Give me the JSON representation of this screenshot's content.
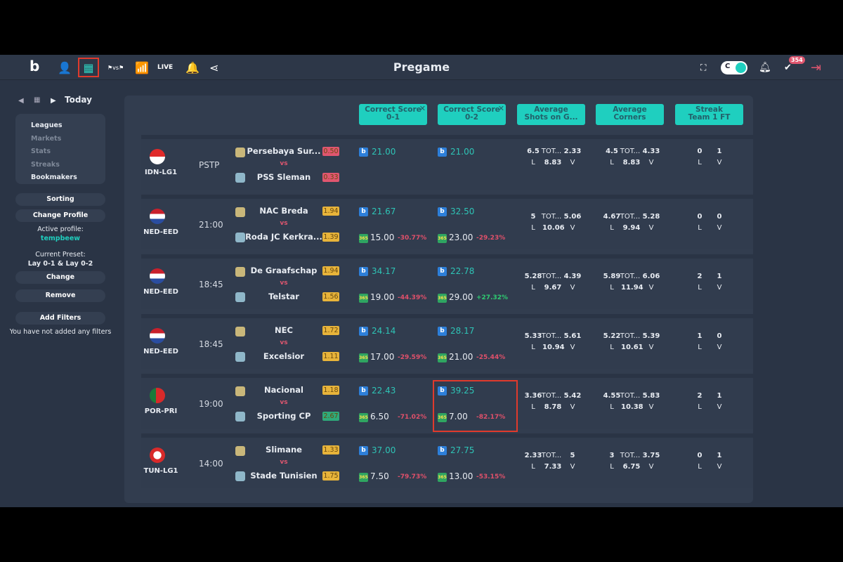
{
  "header": {
    "title": "Pregame",
    "live_label": "LIVE",
    "notification_count": "354",
    "toggle_label": "C",
    "icons": [
      "logo-icon",
      "users-icon",
      "calendar-icon",
      "versus-icon",
      "chart-icon",
      "live",
      "bell-icon",
      "share-icon"
    ]
  },
  "sidebar": {
    "date_label": "Today",
    "filters": [
      "Leagues",
      "Markets",
      "Stats",
      "Streaks",
      "Bookmakers"
    ],
    "sorting": "Sorting",
    "change_profile": "Change Profile",
    "active_profile_label": "Active profile:",
    "active_profile": "tempbeew",
    "preset_label": "Current Preset:",
    "preset": "Lay 0-1 & Lay 0-2",
    "change": "Change",
    "remove": "Remove",
    "add_filters": "Add Filters",
    "no_filters": "You have not added any filters"
  },
  "columns": [
    {
      "label": "Correct Score\n0-1",
      "closable": true
    },
    {
      "label": "Correct Score\n0-2",
      "closable": true
    },
    {
      "label": "Average\nShots on G...",
      "closable": false
    },
    {
      "label": "Average\nCorners",
      "closable": false
    },
    {
      "label": "Streak\nTeam 1 FT",
      "closable": false
    }
  ],
  "labels": {
    "vs": "vs",
    "tot": "TOT...",
    "l": "L",
    "v": "V",
    "close": "✕"
  },
  "colors": {
    "accent": "#1fcfbf",
    "negative": "#e0506a",
    "positive": "#2ecc71"
  },
  "matches": [
    {
      "league": "IDN-LG1",
      "flag": "idn",
      "time": "PSTP",
      "home": "Persebaya Sur...",
      "away": "PSS Sleman",
      "home_odds": "0.50",
      "away_odds": "0.33",
      "home_odds_color": "#e0566f",
      "away_odds_color": "#e0566f",
      "cs01": {
        "betfair": "21.00"
      },
      "cs02": {
        "betfair": "21.00"
      },
      "shots": [
        "6.5",
        "2.33",
        "8.83"
      ],
      "corners": [
        "4.5",
        "4.33",
        "8.83"
      ],
      "streak": [
        "0",
        "1"
      ]
    },
    {
      "league": "NED-EED",
      "flag": "ned",
      "time": "21:00",
      "home": "NAC Breda",
      "away": "Roda JC Kerkra...",
      "home_odds": "1.94",
      "away_odds": "1.39",
      "home_odds_color": "#e8b43a",
      "away_odds_color": "#e8b43a",
      "cs01": {
        "betfair": "21.67",
        "bet365": "15.00",
        "pct": "-30.77%"
      },
      "cs02": {
        "betfair": "32.50",
        "bet365": "23.00",
        "pct": "-29.23%"
      },
      "shots": [
        "5",
        "5.06",
        "10.06"
      ],
      "corners": [
        "4.67",
        "5.28",
        "9.94"
      ],
      "streak": [
        "0",
        "0"
      ]
    },
    {
      "league": "NED-EED",
      "flag": "ned",
      "time": "18:45",
      "home": "De Graafschap",
      "away": "Telstar",
      "home_odds": "1.94",
      "away_odds": "1.56",
      "home_odds_color": "#e8b43a",
      "away_odds_color": "#e8b43a",
      "cs01": {
        "betfair": "34.17",
        "bet365": "19.00",
        "pct": "-44.39%"
      },
      "cs02": {
        "betfair": "22.78",
        "bet365": "29.00",
        "pct": "+27.32%"
      },
      "shots": [
        "5.28",
        "4.39",
        "9.67"
      ],
      "corners": [
        "5.89",
        "6.06",
        "11.94"
      ],
      "streak": [
        "2",
        "1"
      ]
    },
    {
      "league": "NED-EED",
      "flag": "ned",
      "time": "18:45",
      "home": "NEC",
      "away": "Excelsior",
      "home_odds": "1.72",
      "away_odds": "1.11",
      "home_odds_color": "#e8b43a",
      "away_odds_color": "#e8b43a",
      "cs01": {
        "betfair": "24.14",
        "bet365": "17.00",
        "pct": "-29.59%"
      },
      "cs02": {
        "betfair": "28.17",
        "bet365": "21.00",
        "pct": "-25.44%"
      },
      "shots": [
        "5.33",
        "5.61",
        "10.94"
      ],
      "corners": [
        "5.22",
        "5.39",
        "10.61"
      ],
      "streak": [
        "1",
        "0"
      ]
    },
    {
      "league": "POR-PRI",
      "flag": "por",
      "time": "19:00",
      "home": "Nacional",
      "away": "Sporting CP",
      "home_odds": "1.18",
      "away_odds": "2.67",
      "home_odds_color": "#e8b43a",
      "away_odds_color": "#2faa7a",
      "highlight": true,
      "cs01": {
        "betfair": "22.43",
        "bet365": "6.50",
        "pct": "-71.02%"
      },
      "cs02": {
        "betfair": "39.25",
        "bet365": "7.00",
        "pct": "-82.17%"
      },
      "shots": [
        "3.36",
        "5.42",
        "8.78"
      ],
      "corners": [
        "4.55",
        "5.83",
        "10.38"
      ],
      "streak": [
        "2",
        "1"
      ]
    },
    {
      "league": "TUN-LG1",
      "flag": "tun",
      "time": "14:00",
      "home": "Slimane",
      "away": "Stade Tunisien",
      "home_odds": "1.33",
      "away_odds": "1.75",
      "home_odds_color": "#e8b43a",
      "away_odds_color": "#e8b43a",
      "cs01": {
        "betfair": "37.00",
        "bet365": "7.50",
        "pct": "-79.73%"
      },
      "cs02": {
        "betfair": "27.75",
        "bet365": "13.00",
        "pct": "-53.15%"
      },
      "shots": [
        "2.33",
        "5",
        "7.33"
      ],
      "corners": [
        "3",
        "3.75",
        "6.75"
      ],
      "streak": [
        "0",
        "1"
      ]
    }
  ]
}
